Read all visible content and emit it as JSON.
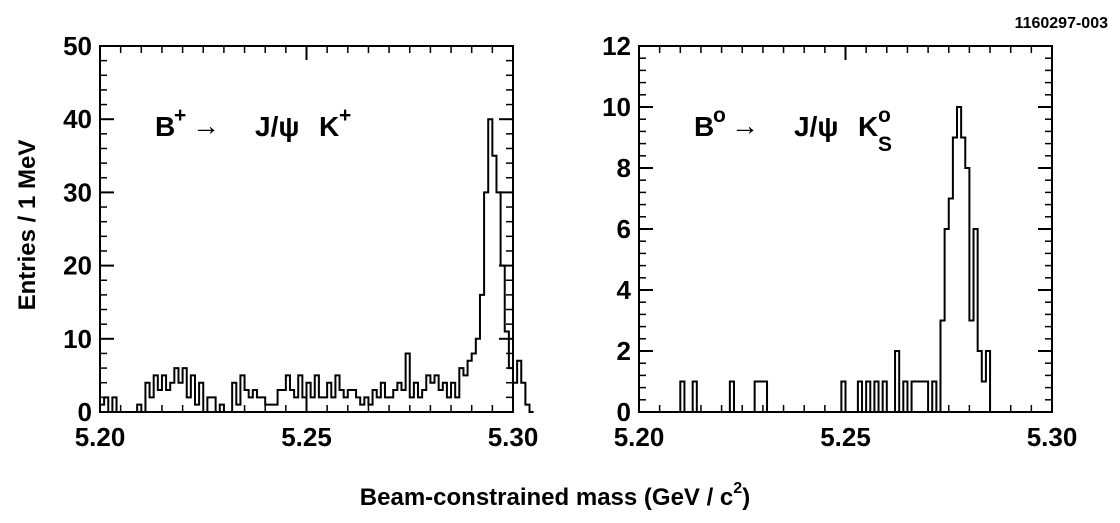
{
  "figure_id": "1160297-003",
  "xlabel_main": "Beam-constrained  mass  (GeV / c",
  "xlabel_sup": "2",
  "xlabel_end": ")",
  "ylabel": "Entries / 1 MeV",
  "chart_data": [
    {
      "type": "histogram",
      "title_parts": {
        "base": "B",
        "base_sup": "+",
        "arrow": "→",
        "jpsi": "J/ψ",
        "kaon": "K",
        "kaon_sup": "+",
        "kaon_sub": ""
      },
      "xlim": [
        5.2,
        5.3
      ],
      "ylim": [
        0,
        50
      ],
      "xticks": [
        5.2,
        5.25,
        5.3
      ],
      "xtick_labels": [
        "5.20",
        "5.25",
        "5.30"
      ],
      "yticks": [
        0,
        10,
        20,
        30,
        40,
        50
      ],
      "ytick_labels": [
        "0",
        "10",
        "20",
        "30",
        "40",
        "50"
      ],
      "bin_width": 0.001,
      "x_start": 5.2,
      "values": [
        1,
        2,
        0,
        2,
        0,
        0,
        0,
        0,
        0,
        1,
        0,
        4,
        2,
        5,
        3,
        5,
        3,
        4,
        6,
        4,
        6,
        2,
        5,
        1,
        4,
        0,
        2,
        2,
        0,
        1,
        0,
        0,
        4,
        1,
        5,
        3,
        2,
        3,
        2,
        2,
        1,
        1,
        1,
        3,
        3,
        5,
        3,
        2,
        5,
        2,
        4,
        2,
        5,
        2,
        2,
        4,
        2,
        5,
        3,
        2,
        3,
        3,
        2,
        1,
        2,
        1,
        3,
        2,
        4,
        2,
        2,
        3,
        4,
        3,
        8,
        2,
        4,
        2,
        3,
        5,
        4,
        5,
        3,
        4,
        2,
        4,
        2,
        6,
        5,
        7,
        8,
        10,
        16,
        30,
        40,
        35,
        30,
        20,
        11,
        6,
        4,
        7,
        4,
        1,
        0
      ]
    },
    {
      "type": "histogram",
      "title_parts": {
        "base": "B",
        "base_sup": "o",
        "arrow": "→",
        "jpsi": "J/ψ",
        "kaon": "K",
        "kaon_sup": "o",
        "kaon_sub": "S"
      },
      "xlim": [
        5.2,
        5.3
      ],
      "ylim": [
        0,
        12
      ],
      "xticks": [
        5.2,
        5.25,
        5.3
      ],
      "xtick_labels": [
        "5.20",
        "5.25",
        "5.30"
      ],
      "yticks": [
        0,
        2,
        4,
        6,
        8,
        10,
        12
      ],
      "ytick_labels": [
        "0",
        "2",
        "4",
        "6",
        "8",
        "10",
        "12"
      ],
      "bin_width": 0.001,
      "x_start": 5.2,
      "values": [
        0,
        0,
        0,
        0,
        0,
        0,
        0,
        0,
        0,
        0,
        1,
        0,
        0,
        1,
        0,
        0,
        0,
        0,
        0,
        0,
        0,
        0,
        1,
        0,
        0,
        0,
        0,
        0,
        1,
        1,
        1,
        0,
        0,
        0,
        0,
        0,
        0,
        0,
        0,
        0,
        0,
        0,
        0,
        0,
        0,
        0,
        0,
        0,
        0,
        1,
        0,
        0,
        0,
        1,
        0,
        1,
        0,
        1,
        0,
        1,
        0,
        0,
        2,
        0,
        1,
        0,
        1,
        1,
        1,
        1,
        0,
        1,
        0,
        3,
        6,
        7,
        9,
        10,
        9,
        8,
        3,
        6,
        2,
        1,
        2,
        0
      ]
    }
  ]
}
